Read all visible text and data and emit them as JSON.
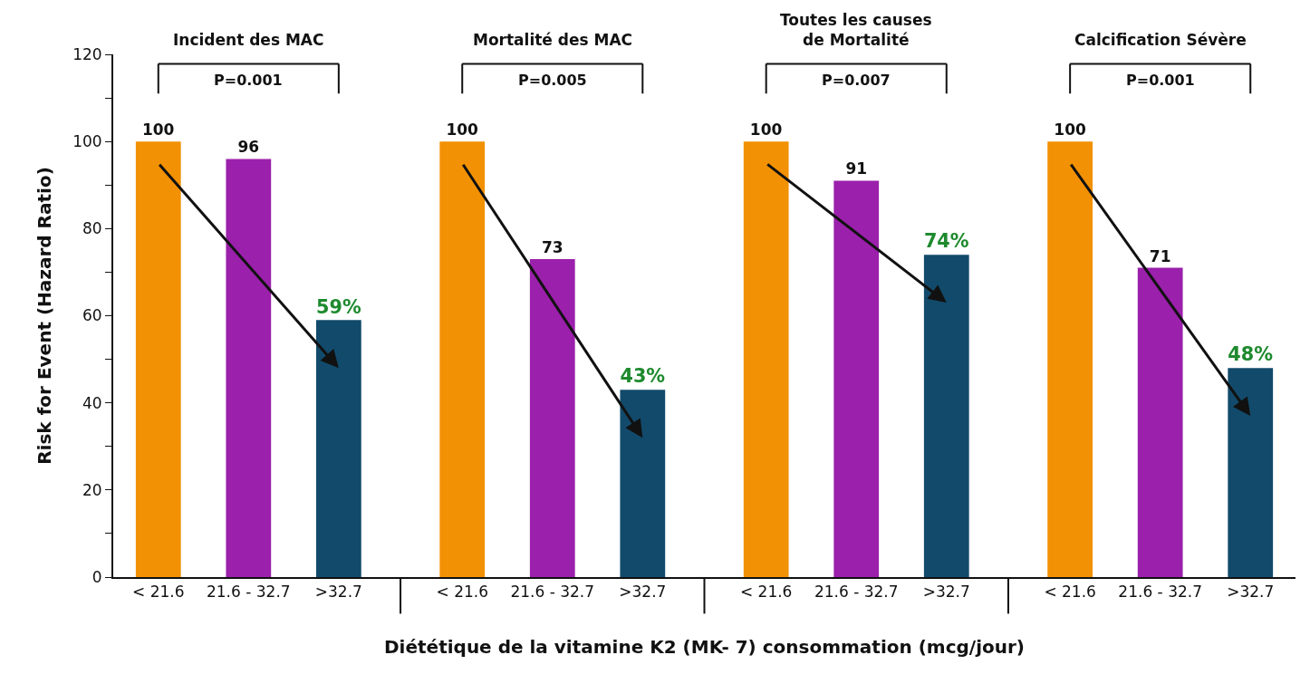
{
  "chart_data": {
    "type": "bar",
    "categories": [
      "< 21.6",
      "21.6 - 32.7",
      ">32.7",
      "< 21.6",
      "21.6 - 32.7",
      ">32.7",
      "< 21.6",
      "21.6 - 32.7",
      ">32.7",
      "< 21.6",
      "21.6 - 32.7",
      ">32.7"
    ],
    "values": [
      100,
      96,
      59,
      100,
      73,
      43,
      100,
      91,
      74,
      100,
      71,
      48
    ],
    "colors": [
      "#f29104",
      "#9b20ab",
      "#124a6b",
      "#f29104",
      "#9b20ab",
      "#124a6b",
      "#f29104",
      "#9b20ab",
      "#124a6b",
      "#f29104",
      "#9b20ab",
      "#124a6b"
    ],
    "value_labels": [
      "100",
      "96",
      "59%",
      "100",
      "73",
      "43%",
      "100",
      "91",
      "74%",
      "100",
      "71",
      "48%"
    ],
    "xlabel": "Diététique de la vitamine K2 (MK- 7) consommation (mcg/jour)",
    "ylabel": "Risk for Event (Hazard Ratio)",
    "ylim": [
      0,
      120
    ],
    "yticks": [
      0,
      {
        "value": 10,
        "label": null
      },
      20,
      {
        "value": 30,
        "label": null
      },
      40,
      {
        "value": 50,
        "label": null
      },
      60,
      {
        "value": 70,
        "label": null
      },
      80,
      {
        "value": 90,
        "label": null
      },
      100,
      {
        "value": 110,
        "label": null
      },
      120
    ],
    "annotations": [
      "Incident des MAC",
      "P=0.001",
      "Mortalité des MAC",
      "P=0.005",
      "Toutes les causes\nde Mortalité",
      "P=0.007",
      "Calcification Sévère",
      "P=0.001"
    ],
    "grid": false
  }
}
